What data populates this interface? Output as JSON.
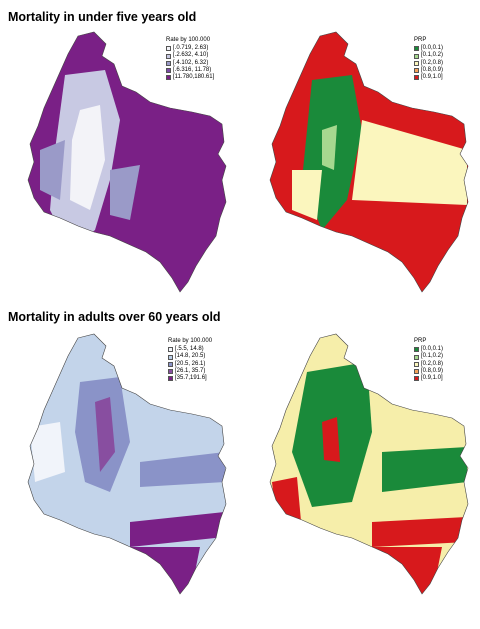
{
  "sections": [
    {
      "title": "Mortality in under five years old",
      "rate_map": {
        "legend_title": "Rate by 100.000",
        "classes": [
          {
            "label": "[.0.719, 2.63)",
            "color": "#f3f3f8"
          },
          {
            "label": "[.2.632, 4.10)",
            "color": "#c8c9e3"
          },
          {
            "label": "[.4.102, 6.32)",
            "color": "#9a9ac8"
          },
          {
            "label": "[.6.316, 11.78)",
            "color": "#7a4aa6"
          },
          {
            "label": "[11.780,180.61]",
            "color": "#7a2086"
          }
        ],
        "base_color": "#7a2086"
      },
      "prp_map": {
        "legend_title": "PRP",
        "classes": [
          {
            "label": "[0.0,0.1)",
            "color": "#1a8a3a"
          },
          {
            "label": "[0.1,0.2)",
            "color": "#a6d88f"
          },
          {
            "label": "[0.2,0.8)",
            "color": "#fbf6be"
          },
          {
            "label": "[0.8,0.9)",
            "color": "#f4a259"
          },
          {
            "label": "[0.9,1.0]",
            "color": "#d7191c"
          }
        ],
        "base_color": "#d7191c"
      }
    },
    {
      "title": "Mortality in adults over 60 years old",
      "rate_map": {
        "legend_title": "Rate by 100.000",
        "classes": [
          {
            "label": "[.5.5, 14.8)",
            "color": "#f1f4fa"
          },
          {
            "label": "[14.8, 20.5)",
            "color": "#b9cde6"
          },
          {
            "label": "[20.5, 26.1)",
            "color": "#8a93c8"
          },
          {
            "label": "[26.1, 35.7)",
            "color": "#884ea0"
          },
          {
            "label": "[35.7,191.6]",
            "color": "#7a2086"
          }
        ],
        "base_color": "#c3d4ea"
      },
      "prp_map": {
        "legend_title": "PRP",
        "classes": [
          {
            "label": "[0.0,0.1)",
            "color": "#1a8a3a"
          },
          {
            "label": "[0.1,0.2)",
            "color": "#a6d88f"
          },
          {
            "label": "[0.2,0.8)",
            "color": "#fbf6be"
          },
          {
            "label": "[0.8,0.9)",
            "color": "#f4a259"
          },
          {
            "label": "[0.9,1.0]",
            "color": "#d7191c"
          }
        ],
        "base_color": "#f6eeaa"
      }
    }
  ]
}
